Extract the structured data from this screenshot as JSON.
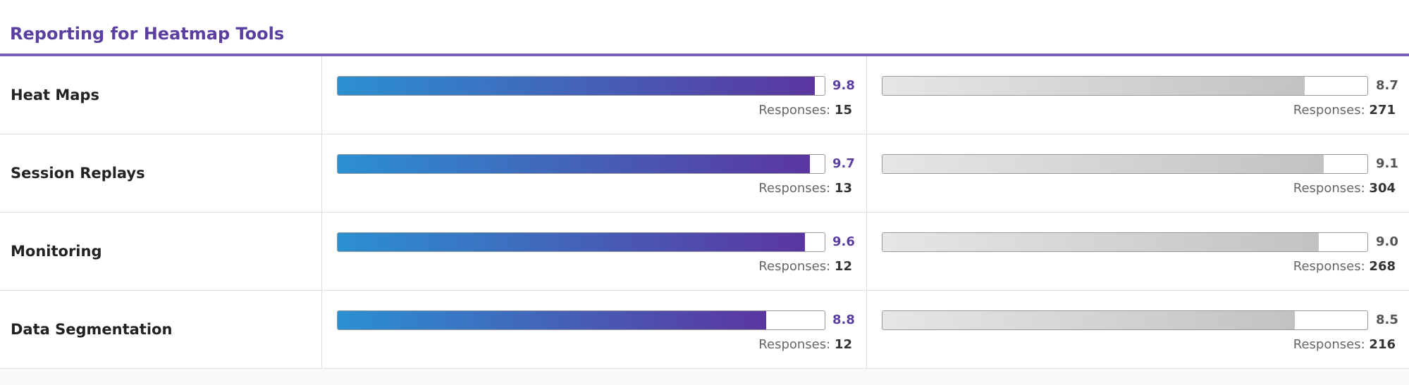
{
  "chart_data": {
    "type": "bar",
    "title": "Reporting for Heatmap Tools",
    "categories": [
      "Heat Maps",
      "Session Replays",
      "Monitoring",
      "Data Segmentation"
    ],
    "xlim": [
      0,
      10
    ],
    "responses_label": "Responses:",
    "series": [
      {
        "color": [
          "#2b90d1",
          "#5b36a0"
        ],
        "label_color": "#5b3fa0",
        "values": [
          9.8,
          9.7,
          9.6,
          8.8
        ],
        "value_labels": [
          "9.8",
          "9.7",
          "9.6",
          "8.8"
        ],
        "responses": [
          15,
          13,
          12,
          12
        ]
      },
      {
        "color": [
          "#e6e6e6",
          "#c2c2c2"
        ],
        "label_color": "#555555",
        "values": [
          8.7,
          9.1,
          9.0,
          8.5
        ],
        "value_labels": [
          "8.7",
          "9.1",
          "9.0",
          "8.5"
        ],
        "responses": [
          271,
          304,
          268,
          216
        ]
      }
    ]
  }
}
